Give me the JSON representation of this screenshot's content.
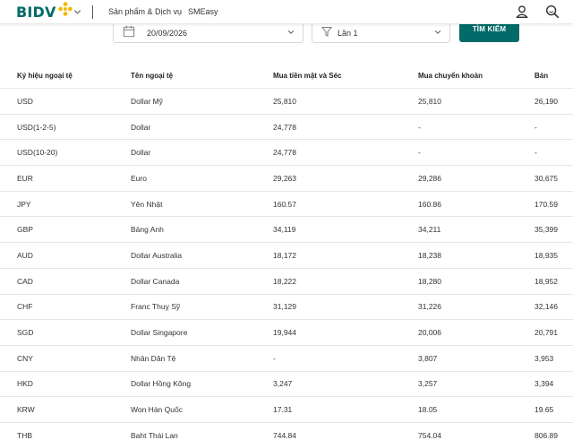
{
  "header": {
    "brand": "BIDV",
    "nav": [
      "Sản phẩm & Dịch vụ",
      "SMEasy"
    ],
    "icons": [
      "user-icon",
      "search-icon"
    ]
  },
  "filters": {
    "date_value": "20/09/2026",
    "lan_value": "Lần 1",
    "search_label": "TÌM KIẾM"
  },
  "table": {
    "columns": [
      "Ký hiệu ngoại tệ",
      "Tên ngoại tệ",
      "Mua tiền mặt và Séc",
      "Mua chuyển khoản",
      "Bán"
    ],
    "rows": [
      [
        "USD",
        "Dollar Mỹ",
        "25,810",
        "25,810",
        "26,190"
      ],
      [
        "USD(1-2-5)",
        "Dollar",
        "24,778",
        "-",
        "-"
      ],
      [
        "USD(10-20)",
        "Dollar",
        "24,778",
        "-",
        "-"
      ],
      [
        "EUR",
        "Euro",
        "29,263",
        "29,286",
        "30,675"
      ],
      [
        "JPY",
        "Yên Nhật",
        "160.57",
        "160.86",
        "170.59"
      ],
      [
        "GBP",
        "Bảng Anh",
        "34,119",
        "34,211",
        "35,399"
      ],
      [
        "AUD",
        "Dollar Australia",
        "18,172",
        "18,238",
        "18,935"
      ],
      [
        "CAD",
        "Dollar Canada",
        "18,222",
        "18,280",
        "18,952"
      ],
      [
        "CHF",
        "Franc Thuỵ Sỹ",
        "31,129",
        "31,226",
        "32,146"
      ],
      [
        "SGD",
        "Dollar Singapore",
        "19,944",
        "20,006",
        "20,791"
      ],
      [
        "CNY",
        "Nhân Dân Tệ",
        "-",
        "3,807",
        "3,953"
      ],
      [
        "HKD",
        "Dollar Hồng Kông",
        "3,247",
        "3,257",
        "3,394"
      ],
      [
        "KRW",
        "Won Hàn Quốc",
        "17.31",
        "18.05",
        "19.65"
      ],
      [
        "THB",
        "Baht Thái Lan",
        "744.84",
        "754.04",
        "806.89"
      ]
    ]
  },
  "colors": {
    "brand": "#006b68",
    "logo_yellow": "#f5b800"
  }
}
